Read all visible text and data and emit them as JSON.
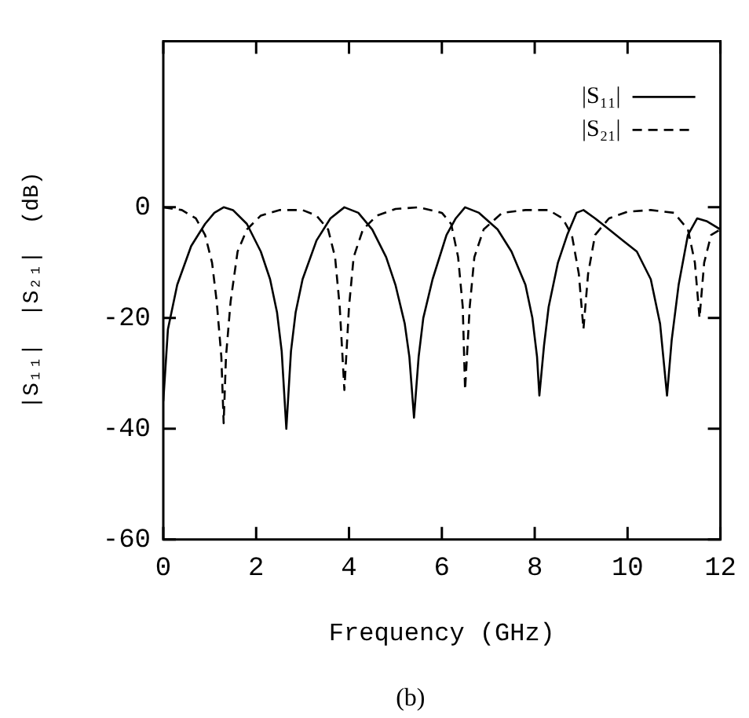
{
  "chart_data": {
    "type": "line",
    "xlabel": "Frequency (GHz)",
    "ylabel": "|S₁₁|  |S₂₁|  (dB)",
    "annotations": [
      "(b)"
    ],
    "xlim": [
      0,
      12
    ],
    "xticks": [
      0,
      2,
      4,
      6,
      8,
      10,
      12
    ],
    "ylim": [
      -60,
      30
    ],
    "yticks": [
      -60,
      -40,
      -20,
      0
    ],
    "legend": "top right",
    "grid": false,
    "marker": "none",
    "series": [
      {
        "name": "|S₁₁|",
        "color": "#000000",
        "line_style": "solid",
        "x": [
          0,
          0.1,
          0.3,
          0.6,
          0.9,
          1.1,
          1.3,
          1.5,
          1.8,
          2.1,
          2.3,
          2.45,
          2.55,
          2.65,
          2.75,
          2.85,
          3.0,
          3.3,
          3.6,
          3.9,
          4.2,
          4.5,
          4.8,
          5.0,
          5.2,
          5.3,
          5.4,
          5.5,
          5.6,
          5.8,
          6.1,
          6.3,
          6.5,
          6.8,
          7.2,
          7.5,
          7.8,
          7.95,
          8.05,
          8.1,
          8.2,
          8.3,
          8.5,
          8.7,
          8.9,
          9.05,
          9.3,
          9.6,
          9.9,
          10.2,
          10.5,
          10.7,
          10.85,
          10.95,
          11.1,
          11.3,
          11.5,
          11.7,
          12
        ],
        "values": [
          -35,
          -22,
          -14,
          -7,
          -3,
          -1,
          0,
          -0.5,
          -3,
          -8,
          -13,
          -19,
          -26,
          -40,
          -26,
          -19,
          -13,
          -6,
          -2,
          0,
          -1,
          -4,
          -9,
          -14,
          -21,
          -27,
          -38,
          -27,
          -20,
          -13,
          -5,
          -2,
          0,
          -1,
          -4,
          -8,
          -14,
          -20,
          -27,
          -34,
          -25,
          -18,
          -10,
          -5,
          -1,
          -0.5,
          -2,
          -4,
          -6,
          -8,
          -13,
          -21,
          -34,
          -24,
          -14,
          -5,
          -2,
          -2.5,
          -4
        ]
      },
      {
        "name": "|S₂₁|",
        "color": "#000000",
        "line_style": "dashed",
        "x": [
          0,
          0.4,
          0.7,
          0.9,
          1.05,
          1.15,
          1.25,
          1.3,
          1.35,
          1.45,
          1.6,
          1.8,
          2.1,
          2.5,
          3.0,
          3.3,
          3.55,
          3.7,
          3.8,
          3.9,
          4.0,
          4.1,
          4.3,
          4.6,
          5.0,
          5.5,
          6.0,
          6.2,
          6.35,
          6.45,
          6.5,
          6.6,
          6.7,
          6.9,
          7.3,
          7.8,
          8.3,
          8.6,
          8.8,
          8.95,
          9.05,
          9.15,
          9.3,
          9.6,
          10.0,
          10.5,
          11.0,
          11.3,
          11.45,
          11.55,
          11.65,
          11.8,
          12
        ],
        "values": [
          0,
          -0.5,
          -2,
          -5,
          -10,
          -17,
          -27,
          -39,
          -27,
          -17,
          -8,
          -4,
          -1.5,
          -0.5,
          -0.5,
          -1.5,
          -4,
          -9,
          -18,
          -33,
          -18,
          -9,
          -4,
          -1.5,
          -0.3,
          0,
          -1,
          -3,
          -9,
          -18,
          -33,
          -18,
          -9,
          -4,
          -1,
          -0.5,
          -0.5,
          -2,
          -5,
          -12,
          -22,
          -12,
          -5,
          -2,
          -0.8,
          -0.5,
          -1,
          -4,
          -10,
          -20,
          -10,
          -5,
          -4
        ]
      }
    ]
  }
}
